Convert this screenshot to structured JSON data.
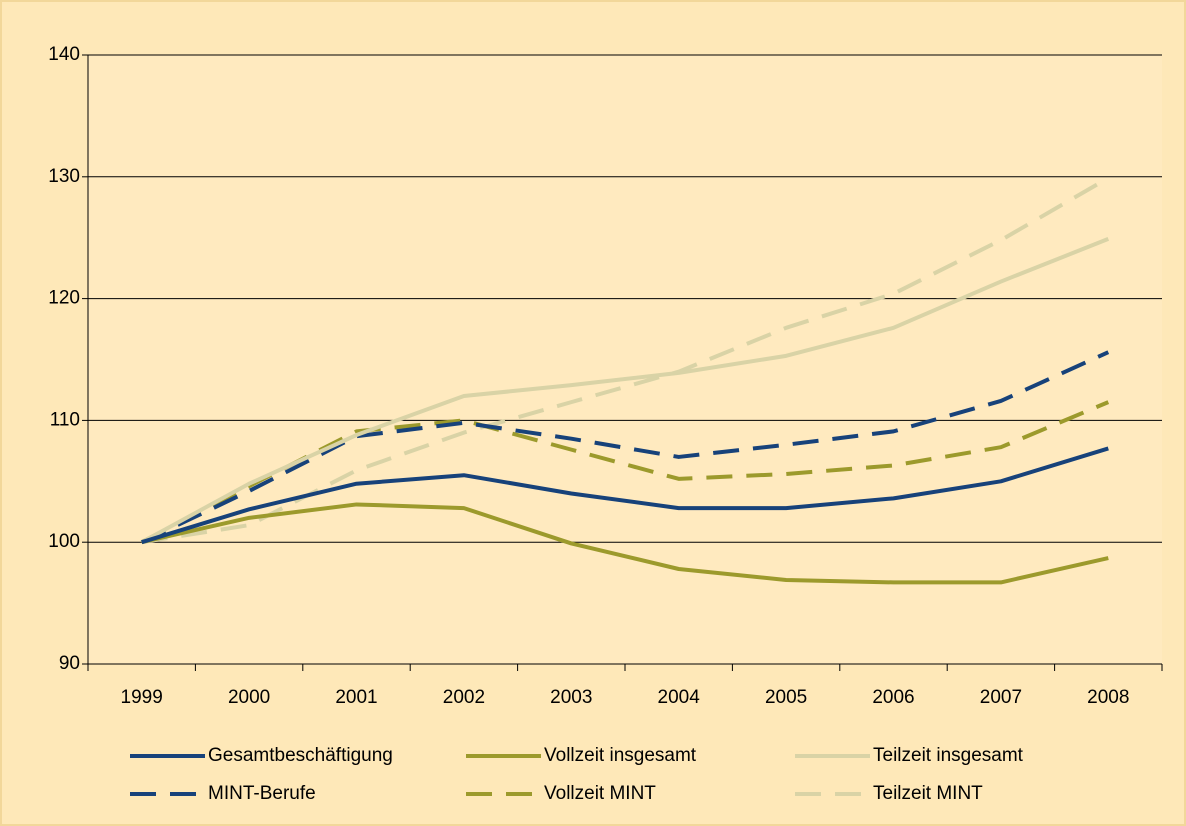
{
  "chart_data": {
    "type": "line",
    "categories": [
      "1999",
      "2000",
      "2001",
      "2002",
      "2003",
      "2004",
      "2005",
      "2006",
      "2007",
      "2008"
    ],
    "ylim": [
      90,
      140
    ],
    "yticks": [
      90,
      100,
      110,
      120,
      130,
      140
    ],
    "grid": true,
    "legend": "bottom",
    "series": [
      {
        "name": "Gesamtbeschäftigung",
        "color": "#17427a",
        "style": "solid",
        "values": [
          100,
          102.7,
          104.8,
          105.5,
          104,
          102.8,
          102.8,
          103.6,
          105,
          107.7
        ]
      },
      {
        "name": "Vollzeit insgesamt",
        "color": "#9c9a2c",
        "style": "solid",
        "values": [
          100,
          102,
          103.1,
          102.8,
          99.9,
          97.8,
          96.9,
          96.7,
          96.7,
          98.7
        ]
      },
      {
        "name": "Teilzeit insgesamt",
        "color": "#d9d3a6",
        "style": "solid",
        "values": [
          100,
          104.8,
          108.8,
          112,
          112.9,
          113.9,
          115.3,
          117.6,
          121.4,
          124.9
        ]
      },
      {
        "name": "MINT-Berufe",
        "color": "#17427a",
        "style": "dashed",
        "values": [
          100,
          104.2,
          108.7,
          109.8,
          108.5,
          107,
          108,
          109.1,
          111.6,
          115.6
        ]
      },
      {
        "name": "Vollzeit MINT",
        "color": "#9c9a2c",
        "style": "dashed",
        "values": [
          100,
          104.6,
          109.1,
          110,
          107.6,
          105.2,
          105.6,
          106.3,
          107.8,
          111.5
        ]
      },
      {
        "name": "Teilzeit MINT",
        "color": "#d9d3a6",
        "style": "dashed",
        "values": [
          100,
          101.4,
          105.9,
          109,
          111.5,
          114,
          117.6,
          120.4,
          124.8,
          129.9
        ]
      }
    ]
  }
}
